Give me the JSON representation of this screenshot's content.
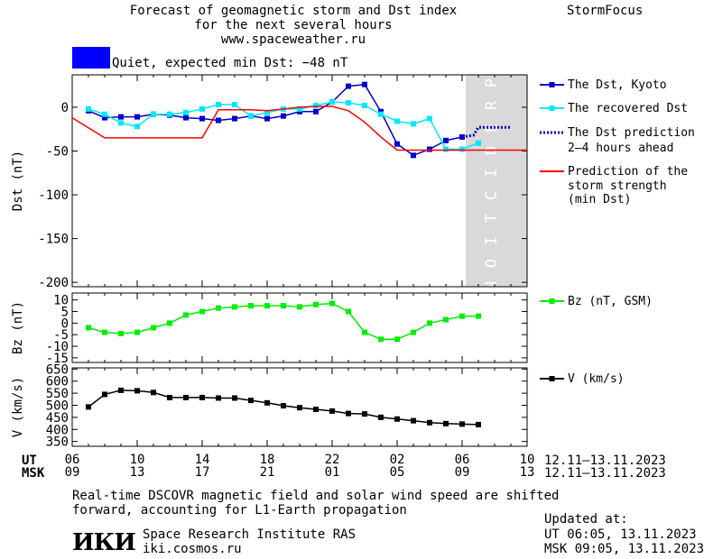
{
  "header": {
    "title_line1": "Forecast of geomagnetic storm and Dst index",
    "title_line2": "for the next several hours",
    "url": "www.spaceweather.ru",
    "brand": "StormFocus",
    "status_text": "Quiet, expected min Dst: −48 nT",
    "status_color": "#0000ff"
  },
  "prediction_label": "PREDICTION",
  "legend": {
    "dst_kyoto": "The Dst, Kyoto",
    "dst_recovered": "The recovered Dst",
    "dst_prediction_1": "The Dst prediction",
    "dst_prediction_2": "2–4 hours ahead",
    "storm_1": "Prediction of the",
    "storm_2": "storm strength",
    "storm_3": "(min Dst)",
    "bz": "Bz (nT, GSM)",
    "v": "V (km/s)"
  },
  "time_axis": {
    "ut_label": "UT",
    "msk_label": "MSK",
    "ut_ticks": [
      "06",
      "10",
      "14",
      "18",
      "22",
      "02",
      "06",
      "10"
    ],
    "msk_ticks": [
      "09",
      "13",
      "17",
      "21",
      "01",
      "05",
      "09",
      "13"
    ],
    "ut_range": "12.11–13.11.2023",
    "msk_range": "12.11–13.11.2023"
  },
  "footer": {
    "note_line1": "Real-time DSCOVR magnetic field and solar wind speed are shifted",
    "note_line2": "forward, accounting for L1-Earth propagation",
    "logo_text": "ИКИ",
    "institute": "Space Research Institute RAS",
    "website": "iki.cosmos.ru",
    "updated_label": "Updated at:",
    "updated_ut": "UT   06:05, 13.11.2023",
    "updated_msk": "MSK 09:05, 13.11.2023"
  },
  "chart_data": [
    {
      "type": "line",
      "ylabel": "Dst (nT)",
      "ylim": [
        -205,
        37
      ],
      "yticks": [
        0,
        -50,
        -100,
        -150,
        -200
      ],
      "xlim": [
        6,
        34
      ],
      "prediction_region": [
        30.25,
        34
      ],
      "series": [
        {
          "name": "The Dst, Kyoto",
          "color": "#0000cc",
          "marker": "square",
          "x": [
            7,
            8,
            9,
            10,
            11,
            12,
            13,
            14,
            15,
            16,
            17,
            18,
            19,
            20,
            21,
            22,
            23,
            24,
            25,
            26,
            27,
            28,
            29,
            30
          ],
          "y": [
            -4,
            -12,
            -11,
            -11,
            -8,
            -9,
            -12,
            -13,
            -15,
            -13,
            -10,
            -13,
            -10,
            -5,
            -5,
            6,
            24,
            26,
            -5,
            -42,
            -55,
            -48,
            -38,
            -34
          ]
        },
        {
          "name": "The recovered Dst",
          "color": "#00e8ff",
          "marker": "square",
          "x": [
            7,
            8,
            9,
            10,
            11,
            12,
            13,
            14,
            15,
            16,
            17,
            18,
            19,
            20,
            21,
            22,
            23,
            24,
            25,
            26,
            27,
            28,
            29,
            30,
            31
          ],
          "y": [
            -2,
            -8,
            -18,
            -22,
            -8,
            -8,
            -6,
            -2,
            3,
            3,
            -10,
            -6,
            -2,
            -2,
            2,
            6,
            5,
            2,
            -8,
            -16,
            -19,
            -13,
            -48,
            -48,
            -41
          ]
        },
        {
          "name": "The Dst prediction 2–4 hours ahead",
          "color": "#0000cc",
          "style": "dotted",
          "x": [
            30,
            30.7,
            31,
            33
          ],
          "y": [
            -34,
            -32,
            -23,
            -23
          ]
        },
        {
          "name": "Prediction of the storm strength (min Dst)",
          "color": "#ff0000",
          "x": [
            6,
            8,
            13,
            14,
            15,
            16,
            17,
            18,
            19,
            20,
            21,
            22,
            23,
            24,
            25,
            26,
            34
          ],
          "y": [
            -12,
            -35,
            -35,
            -35,
            -3,
            -3,
            -3,
            -4,
            -2,
            0,
            1,
            1,
            -4,
            -17,
            -34,
            -49,
            -49
          ]
        }
      ]
    },
    {
      "type": "line",
      "ylabel": "Bz (nT)",
      "ylim": [
        -17,
        13
      ],
      "yticks": [
        10,
        5,
        0,
        -5,
        -10,
        -15
      ],
      "xlim": [
        6,
        34
      ],
      "series": [
        {
          "name": "Bz (nT, GSM)",
          "color": "#00ee00",
          "marker": "square",
          "x": [
            7,
            8,
            9,
            10,
            11,
            12,
            13,
            14,
            15,
            16,
            17,
            18,
            19,
            20,
            21,
            22,
            23,
            24,
            25,
            26,
            27,
            28,
            29,
            30,
            31
          ],
          "y": [
            -2,
            -4,
            -4.5,
            -4,
            -2,
            0,
            3.5,
            5,
            6.5,
            7,
            7.5,
            7.5,
            7.5,
            7,
            8,
            8.5,
            5,
            -4,
            -7,
            -7,
            -4,
            0,
            1.5,
            3,
            3
          ]
        }
      ]
    },
    {
      "type": "line",
      "ylabel": "V (km/s)",
      "ylim": [
        330,
        655
      ],
      "yticks": [
        650,
        600,
        550,
        500,
        450,
        400,
        350
      ],
      "xlim": [
        6,
        34
      ],
      "series": [
        {
          "name": "V (km/s)",
          "color": "#000000",
          "marker": "square",
          "x": [
            7,
            8,
            9,
            10,
            11,
            12,
            13,
            14,
            15,
            16,
            17,
            18,
            19,
            20,
            21,
            22,
            23,
            24,
            25,
            26,
            27,
            28,
            29,
            30,
            31
          ],
          "y": [
            493,
            545,
            562,
            560,
            553,
            532,
            532,
            532,
            530,
            530,
            520,
            510,
            498,
            490,
            483,
            476,
            466,
            464,
            450,
            443,
            436,
            428,
            424,
            422,
            420
          ]
        }
      ]
    }
  ]
}
